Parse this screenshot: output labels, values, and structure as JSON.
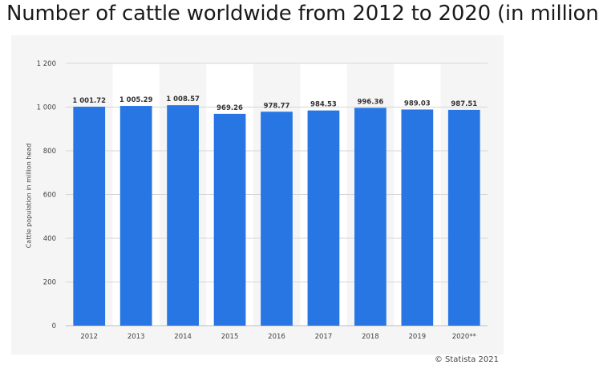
{
  "title": "Number of cattle worldwide from 2012 to 2020 (in million",
  "copyright": "© Statista 2021",
  "colors": {
    "bar": "#2776e4",
    "panel": "#f5f5f5",
    "band": "#ffffff",
    "grid": "#d6d6d6"
  },
  "chart_data": {
    "type": "bar",
    "ylabel": "Cattle population in million head",
    "categories": [
      "2012",
      "2013",
      "2014",
      "2015",
      "2016",
      "2017",
      "2018",
      "2019",
      "2020**"
    ],
    "values": [
      1001.72,
      1005.29,
      1008.57,
      969.26,
      978.77,
      984.53,
      996.36,
      989.03,
      987.51
    ],
    "data_labels": [
      "1 001.72",
      "1 005.29",
      "1 008.57",
      "969.26",
      "978.77",
      "984.53",
      "996.36",
      "989.03",
      "987.51"
    ],
    "ylim": [
      0,
      1200
    ],
    "yticks": [
      0,
      200,
      400,
      600,
      800,
      1000,
      1200
    ],
    "ytick_labels": [
      "0",
      "200",
      "400",
      "600",
      "800",
      "1 000",
      "1 200"
    ],
    "grid": true
  }
}
